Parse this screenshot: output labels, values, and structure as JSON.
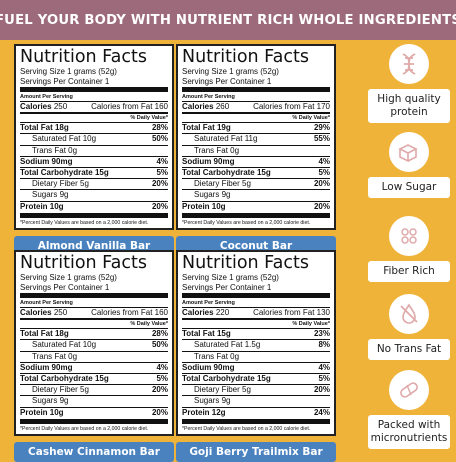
{
  "banner": "FUEL YOUR BODY WITH NUTRIENT RICH WHOLE INGREDIENTS",
  "labels": [
    {
      "title": "Nutrition Facts",
      "serving_size": "Serving Size 1 grams (52g)",
      "servings": "Servings Per Container 1",
      "amount": "Amount Per Serving",
      "calories_label": "Calories",
      "calories": "250",
      "from_fat": "Calories from Fat 160",
      "dv_header": "% Daily Value*",
      "rows": [
        {
          "name": "Total Fat 18g",
          "pct": "28%",
          "bold": true,
          "indent": false
        },
        {
          "name": "Saturated Fat 10g",
          "pct": "50%",
          "bold": false,
          "indent": true
        },
        {
          "name": "Trans Fat 0g",
          "pct": "",
          "bold": false,
          "indent": true
        },
        {
          "name": "Sodium 90mg",
          "pct": "4%",
          "bold": true,
          "indent": false
        },
        {
          "name": "Total Carbohydrate 15g",
          "pct": "5%",
          "bold": true,
          "indent": false
        },
        {
          "name": "Dietary Fiber 5g",
          "pct": "20%",
          "bold": false,
          "indent": true
        },
        {
          "name": "Sugars 9g",
          "pct": "",
          "bold": false,
          "indent": true
        },
        {
          "name": "Protein 10g",
          "pct": "20%",
          "bold": true,
          "indent": false
        }
      ],
      "footnote": "*Percent Daily Values are based on a 2,000 calorie diet.",
      "name": "Almond Vanilla Bar",
      "name_color": "#4a82bf"
    },
    {
      "title": "Nutrition Facts",
      "serving_size": "Serving Size 1 grams (52g)",
      "servings": "Servings Per Container 1",
      "amount": "Amount Per Serving",
      "calories_label": "Calories",
      "calories": "260",
      "from_fat": "Calories from Fat 170",
      "dv_header": "% Daily Value*",
      "rows": [
        {
          "name": "Total Fat 19g",
          "pct": "29%",
          "bold": true,
          "indent": false
        },
        {
          "name": "Saturated Fat 11g",
          "pct": "55%",
          "bold": false,
          "indent": true
        },
        {
          "name": "Trans Fat 0g",
          "pct": "",
          "bold": false,
          "indent": true
        },
        {
          "name": "Sodium 90mg",
          "pct": "4%",
          "bold": true,
          "indent": false
        },
        {
          "name": "Total Carbohydrate 15g",
          "pct": "5%",
          "bold": true,
          "indent": false
        },
        {
          "name": "Dietary Fiber 5g",
          "pct": "20%",
          "bold": false,
          "indent": true
        },
        {
          "name": "Sugars 9g",
          "pct": "",
          "bold": false,
          "indent": true
        },
        {
          "name": "Protein 10g",
          "pct": "20%",
          "bold": true,
          "indent": false
        }
      ],
      "footnote": "*Percent Daily Values are based on a 2,000 calorie diet.",
      "name": "Coconut Bar",
      "name_color": "#4a82bf"
    },
    {
      "title": "Nutrition Facts",
      "serving_size": "Serving Size 1 grams (52g)",
      "servings": "Servings Per Container 1",
      "amount": "Amount Per Serving",
      "calories_label": "Calories",
      "calories": "250",
      "from_fat": "Calories from Fat 160",
      "dv_header": "% Daily Value*",
      "rows": [
        {
          "name": "Total Fat 18g",
          "pct": "28%",
          "bold": true,
          "indent": false
        },
        {
          "name": "Saturated Fat 10g",
          "pct": "50%",
          "bold": false,
          "indent": true
        },
        {
          "name": "Trans Fat 0g",
          "pct": "",
          "bold": false,
          "indent": true
        },
        {
          "name": "Sodium 90mg",
          "pct": "4%",
          "bold": true,
          "indent": false
        },
        {
          "name": "Total Carbohydrate 15g",
          "pct": "5%",
          "bold": true,
          "indent": false
        },
        {
          "name": "Dietary Fiber 5g",
          "pct": "20%",
          "bold": false,
          "indent": true
        },
        {
          "name": "Sugars 9g",
          "pct": "",
          "bold": false,
          "indent": true
        },
        {
          "name": "Protein 10g",
          "pct": "20%",
          "bold": true,
          "indent": false
        }
      ],
      "footnote": "*Percent Daily Values are based on a 2,000 calorie diet.",
      "name": "Cashew Cinnamon Bar",
      "name_color": "#4a82bf"
    },
    {
      "title": "Nutrition Facts",
      "serving_size": "Serving Size 1 grams (52g)",
      "servings": "Servings Per Container 1",
      "amount": "Amount Per Serving",
      "calories_label": "Calories",
      "calories": "220",
      "from_fat": "Calories from Fat 130",
      "dv_header": "% Daily Value*",
      "rows": [
        {
          "name": "Total Fat 15g",
          "pct": "23%",
          "bold": true,
          "indent": false
        },
        {
          "name": "Saturated Fat 1.5g",
          "pct": "8%",
          "bold": false,
          "indent": true
        },
        {
          "name": "Trans Fat 0g",
          "pct": "",
          "bold": false,
          "indent": true
        },
        {
          "name": "Sodium 90mg",
          "pct": "4%",
          "bold": true,
          "indent": false
        },
        {
          "name": "Total Carbohydrate 15g",
          "pct": "5%",
          "bold": true,
          "indent": false
        },
        {
          "name": "Dietary Fiber 5g",
          "pct": "20%",
          "bold": false,
          "indent": true
        },
        {
          "name": "Sugars 9g",
          "pct": "",
          "bold": false,
          "indent": true
        },
        {
          "name": "Protein 12g",
          "pct": "24%",
          "bold": true,
          "indent": false
        }
      ],
      "footnote": "*Percent Daily Values are based on a 2,000 calorie diet.",
      "name": "Goji Berry Trailmix Bar",
      "name_color": "#4a82bf"
    }
  ],
  "features": [
    {
      "icon": "dna-icon",
      "label": "High quality protein"
    },
    {
      "icon": "sugar-cube-icon",
      "label": "Low Sugar"
    },
    {
      "icon": "grain-icon",
      "label": "Fiber Rich"
    },
    {
      "icon": "no-drop-icon",
      "label": "No Trans Fat"
    },
    {
      "icon": "capsule-icon",
      "label": "Packed with micronutrients"
    }
  ],
  "colors": {
    "background": "#f0b33a",
    "banner": "#9c6a7a",
    "name_bar": "#4a82bf",
    "icon_stroke": "#e0a9a9"
  }
}
